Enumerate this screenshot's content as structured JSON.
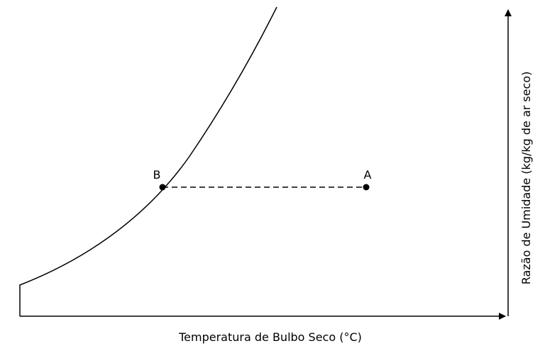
{
  "axes": {
    "x_label": "Temperatura de Bulbo Seco (°C)",
    "y_label": "Razão de Umidade (kg/kg de ar seco)"
  },
  "points": {
    "a": {
      "label": "A"
    },
    "b": {
      "label": "B"
    }
  },
  "colors": {
    "line": "#000000",
    "background": "#ffffff"
  }
}
